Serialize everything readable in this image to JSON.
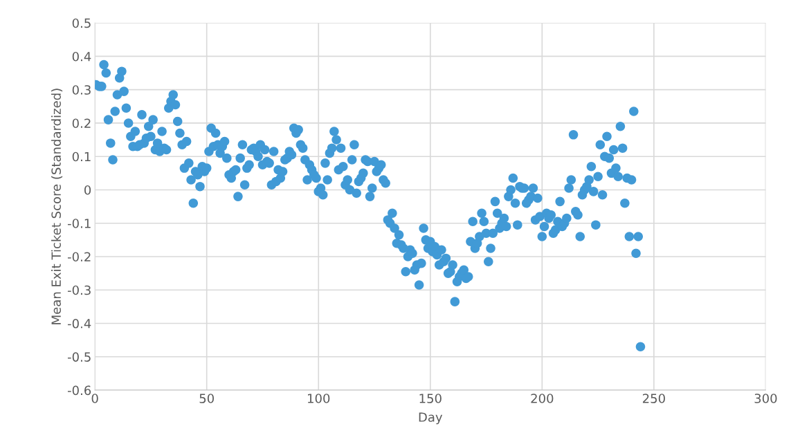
{
  "chart_data": {
    "type": "scatter",
    "xlabel": "Day",
    "ylabel": "Mean Exit Ticket Score (Standardized)",
    "xlim": [
      0,
      300
    ],
    "xticks": [
      0,
      50,
      100,
      150,
      200,
      250,
      300
    ],
    "ylim": [
      -0.6,
      0.5
    ],
    "yticks": [
      {
        "value": -0.6,
        "label": "-0.6"
      },
      {
        "value": -0.5,
        "label": "-0.5"
      },
      {
        "value": -0.4,
        "label": "-0.4"
      },
      {
        "value": -0.3,
        "label": "-0.3"
      },
      {
        "value": -0.2,
        "label": "-0.2"
      },
      {
        "value": -0.1,
        "label": "-0.1"
      },
      0,
      0.1,
      0.2,
      0.3,
      0.4,
      0.5
    ],
    "grid": true,
    "marker": "circle",
    "x": [
      0.5,
      2,
      3,
      4,
      5,
      6,
      7,
      8,
      9,
      10,
      11,
      12,
      13,
      14,
      15,
      16,
      17,
      18,
      19,
      20,
      21,
      22,
      23,
      24,
      25,
      26,
      27,
      28,
      29,
      30,
      31,
      32,
      33,
      34,
      35,
      36,
      37,
      38,
      39,
      40,
      41,
      42,
      43,
      44,
      45,
      46,
      47,
      48,
      49,
      50,
      51,
      52,
      53,
      54,
      55,
      56,
      57,
      58,
      59,
      60,
      61,
      62,
      63,
      64,
      65,
      66,
      67,
      68,
      69,
      70,
      71,
      72,
      73,
      74,
      75,
      76,
      77,
      78,
      79,
      80,
      81,
      82,
      83,
      84,
      85,
      86,
      87,
      88,
      89,
      90,
      91,
      92,
      93,
      94,
      95,
      96,
      97,
      98,
      99,
      100,
      101,
      102,
      103,
      104,
      105,
      106,
      107,
      108,
      109,
      110,
      111,
      112,
      113,
      114,
      115,
      116,
      117,
      118,
      119,
      120,
      121,
      122,
      123,
      124,
      125,
      126,
      127,
      128,
      129,
      130,
      131,
      132,
      133,
      134,
      135,
      136,
      137,
      138,
      139,
      140,
      141,
      142,
      143,
      144,
      145,
      146,
      147,
      148,
      149,
      150,
      151,
      152,
      153,
      154,
      155,
      156,
      157,
      158,
      159,
      160,
      161,
      162,
      163,
      164,
      165,
      166,
      167,
      168,
      169,
      170,
      171,
      172,
      173,
      174,
      175,
      176,
      177,
      178,
      179,
      180,
      181,
      182,
      183,
      184,
      185,
      186,
      187,
      188,
      189,
      190,
      191,
      192,
      193,
      194,
      195,
      196,
      197,
      198,
      199,
      200,
      201,
      202,
      203,
      204,
      205,
      206,
      207,
      208,
      209,
      210,
      211,
      212,
      213,
      214,
      215,
      216,
      217,
      218,
      219,
      220,
      221,
      222,
      223,
      224,
      225,
      226,
      227,
      228,
      229,
      230,
      231,
      232,
      233,
      234,
      235,
      236,
      237,
      238,
      239,
      240,
      241,
      242,
      243,
      244
    ],
    "series": [
      {
        "color": "#419ad6",
        "values": [
          0.315,
          0.31,
          0.31,
          0.375,
          0.35,
          0.21,
          0.14,
          0.09,
          0.235,
          0.285,
          0.335,
          0.355,
          0.295,
          0.245,
          0.2,
          0.16,
          0.13,
          0.175,
          0.13,
          0.135,
          0.225,
          0.14,
          0.155,
          0.19,
          0.16,
          0.21,
          0.12,
          0.14,
          0.115,
          0.175,
          0.125,
          0.12,
          0.245,
          0.265,
          0.285,
          0.255,
          0.205,
          0.17,
          0.135,
          0.065,
          0.145,
          0.08,
          0.03,
          -0.04,
          0.055,
          0.045,
          0.01,
          0.07,
          0.055,
          0.065,
          0.115,
          0.185,
          0.13,
          0.17,
          0.135,
          0.11,
          0.13,
          0.145,
          0.095,
          0.045,
          0.035,
          0.055,
          0.06,
          -0.02,
          0.095,
          0.135,
          0.015,
          0.065,
          0.075,
          0.12,
          0.125,
          0.115,
          0.1,
          0.135,
          0.075,
          0.12,
          0.085,
          0.08,
          0.015,
          0.115,
          0.025,
          0.06,
          0.035,
          0.055,
          0.09,
          0.095,
          0.115,
          0.105,
          0.185,
          0.17,
          0.18,
          0.135,
          0.125,
          0.09,
          0.03,
          0.075,
          0.06,
          0.045,
          0.035,
          -0.005,
          0.005,
          -0.015,
          0.08,
          0.03,
          0.11,
          0.125,
          0.175,
          0.15,
          0.06,
          0.125,
          0.07,
          0.015,
          0.03,
          0.0,
          0.09,
          0.135,
          -0.01,
          0.025,
          0.035,
          0.05,
          0.09,
          0.085,
          -0.02,
          0.005,
          0.085,
          0.055,
          0.065,
          0.075,
          0.03,
          0.02,
          -0.09,
          -0.1,
          -0.07,
          -0.115,
          -0.16,
          -0.135,
          -0.165,
          -0.175,
          -0.245,
          -0.2,
          -0.18,
          -0.19,
          -0.24,
          -0.225,
          -0.285,
          -0.22,
          -0.115,
          -0.15,
          -0.175,
          -0.155,
          -0.185,
          -0.17,
          -0.195,
          -0.225,
          -0.18,
          -0.215,
          -0.205,
          -0.25,
          -0.245,
          -0.225,
          -0.335,
          -0.275,
          -0.26,
          -0.25,
          -0.24,
          -0.265,
          -0.26,
          -0.155,
          -0.095,
          -0.175,
          -0.16,
          -0.14,
          -0.07,
          -0.095,
          -0.13,
          -0.215,
          -0.175,
          -0.13,
          -0.035,
          -0.07,
          -0.115,
          -0.1,
          -0.085,
          -0.11,
          -0.02,
          0.0,
          0.035,
          -0.04,
          -0.105,
          0.01,
          0.005,
          0.005,
          -0.04,
          -0.03,
          -0.02,
          0.005,
          -0.09,
          -0.025,
          -0.08,
          -0.14,
          -0.11,
          -0.07,
          -0.085,
          -0.075,
          -0.13,
          -0.12,
          -0.095,
          -0.035,
          -0.11,
          -0.1,
          -0.085,
          0.005,
          0.03,
          0.165,
          -0.065,
          -0.075,
          -0.14,
          -0.015,
          0.0,
          0.01,
          0.03,
          0.07,
          -0.005,
          -0.105,
          0.04,
          0.135,
          -0.015,
          0.1,
          0.16,
          0.095,
          0.05,
          0.12,
          0.065,
          0.04,
          0.19,
          0.125,
          -0.04,
          0.035,
          -0.14,
          0.03,
          0.235,
          -0.19,
          -0.14,
          -0.47
        ]
      }
    ]
  }
}
